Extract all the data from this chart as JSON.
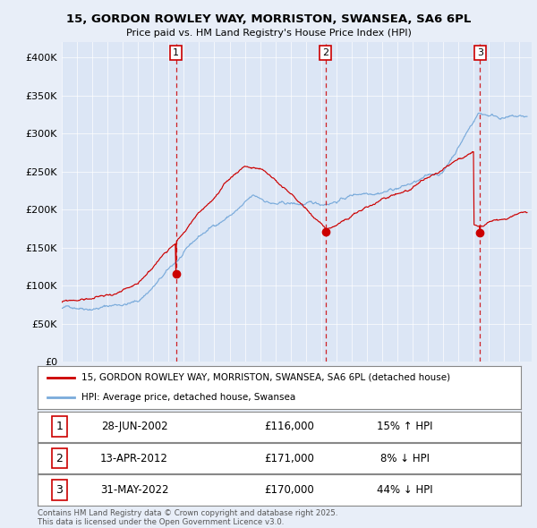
{
  "title_line1": "15, GORDON ROWLEY WAY, MORRISTON, SWANSEA, SA6 6PL",
  "title_line2": "Price paid vs. HM Land Registry's House Price Index (HPI)",
  "background_color": "#e8eef8",
  "plot_bg_color": "#dce6f5",
  "ylim": [
    0,
    420000
  ],
  "yticks": [
    0,
    50000,
    100000,
    150000,
    200000,
    250000,
    300000,
    350000,
    400000
  ],
  "ytick_labels": [
    "£0",
    "£50K",
    "£100K",
    "£150K",
    "£200K",
    "£250K",
    "£300K",
    "£350K",
    "£400K"
  ],
  "sale_dates": [
    "28-JUN-2002",
    "13-APR-2012",
    "31-MAY-2022"
  ],
  "sale_prices": [
    116000,
    171000,
    170000
  ],
  "sale_labels": [
    "1",
    "2",
    "3"
  ],
  "sale_hpi_pct": [
    "15% ↑ HPI",
    "8% ↓ HPI",
    "44% ↓ HPI"
  ],
  "vline_years": [
    2002.49,
    2012.28,
    2022.41
  ],
  "legend_label_red": "15, GORDON ROWLEY WAY, MORRISTON, SWANSEA, SA6 6PL (detached house)",
  "legend_label_blue": "HPI: Average price, detached house, Swansea",
  "footer": "Contains HM Land Registry data © Crown copyright and database right 2025.\nThis data is licensed under the Open Government Licence v3.0.",
  "red_color": "#cc0000",
  "blue_color": "#7aabdb",
  "vline_color": "#cc0000"
}
